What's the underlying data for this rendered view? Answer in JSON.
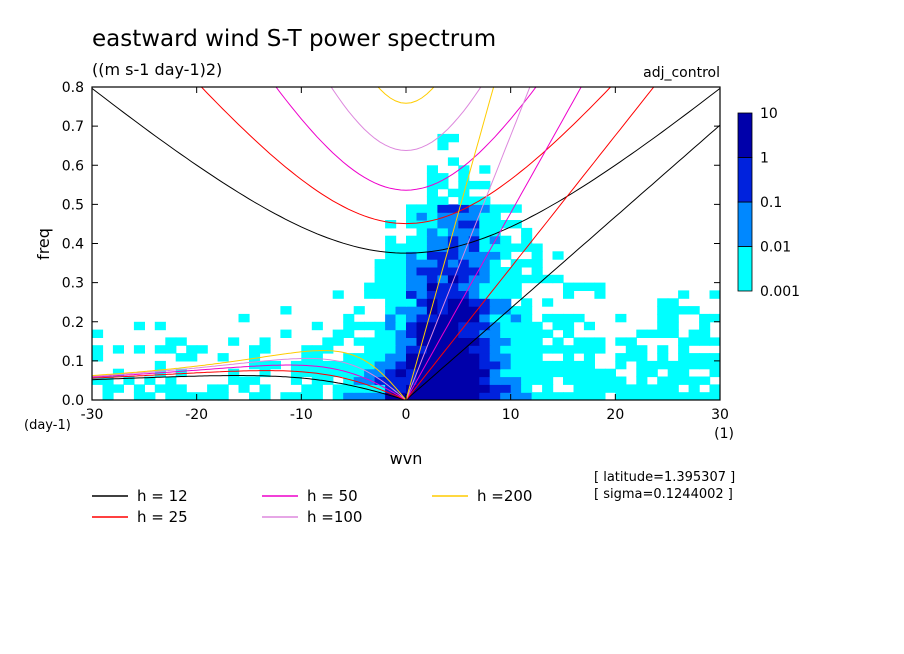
{
  "chart_data": {
    "type": "heatmap",
    "title": "eastward wind S-T power spectrum",
    "subtitle": "((m s-1 day-1)2)",
    "run_label": "adj_control",
    "xlabel": "wvn",
    "ylabel": "freq",
    "x_unit_label": "(1)",
    "y_unit_label": "(day-1)",
    "xlim": [
      -30,
      30
    ],
    "ylim": [
      0,
      0.8
    ],
    "x_ticks": [
      -30,
      -20,
      -10,
      0,
      10,
      20,
      30
    ],
    "y_ticks": [
      0.0,
      0.1,
      0.2,
      0.3,
      0.4,
      0.5,
      0.6,
      0.7,
      0.8
    ],
    "x_tick_labels": [
      "-30",
      "-20",
      "-10",
      "0",
      "10",
      "20",
      "30"
    ],
    "y_tick_labels": [
      "0.0",
      "0.1",
      "0.2",
      "0.3",
      "0.4",
      "0.5",
      "0.6",
      "0.7",
      "0.8"
    ],
    "colorbar": {
      "levels": [
        0.001,
        0.01,
        0.1,
        1,
        10
      ],
      "labels": [
        "0.001",
        "0.01",
        "0.1",
        "1",
        "10"
      ],
      "colors": [
        "#00ffff",
        "#0088ff",
        "#0022dd",
        "#0000aa",
        "#5500aa"
      ]
    },
    "dispersion_curves": [
      {
        "name": "h = 12",
        "h": 12,
        "color": "#000000"
      },
      {
        "name": "h = 25",
        "h": 25,
        "color": "#ff0000"
      },
      {
        "name": "h = 50",
        "h": 50,
        "color": "#ee00cc"
      },
      {
        "name": "h =100",
        "h": 100,
        "color": "#dd88dd"
      },
      {
        "name": "h =200",
        "h": 200,
        "color": "#ffcc00"
      }
    ],
    "info": [
      "[ latitude=1.395307 ]",
      "[ sigma=0.1244002 ]"
    ]
  }
}
